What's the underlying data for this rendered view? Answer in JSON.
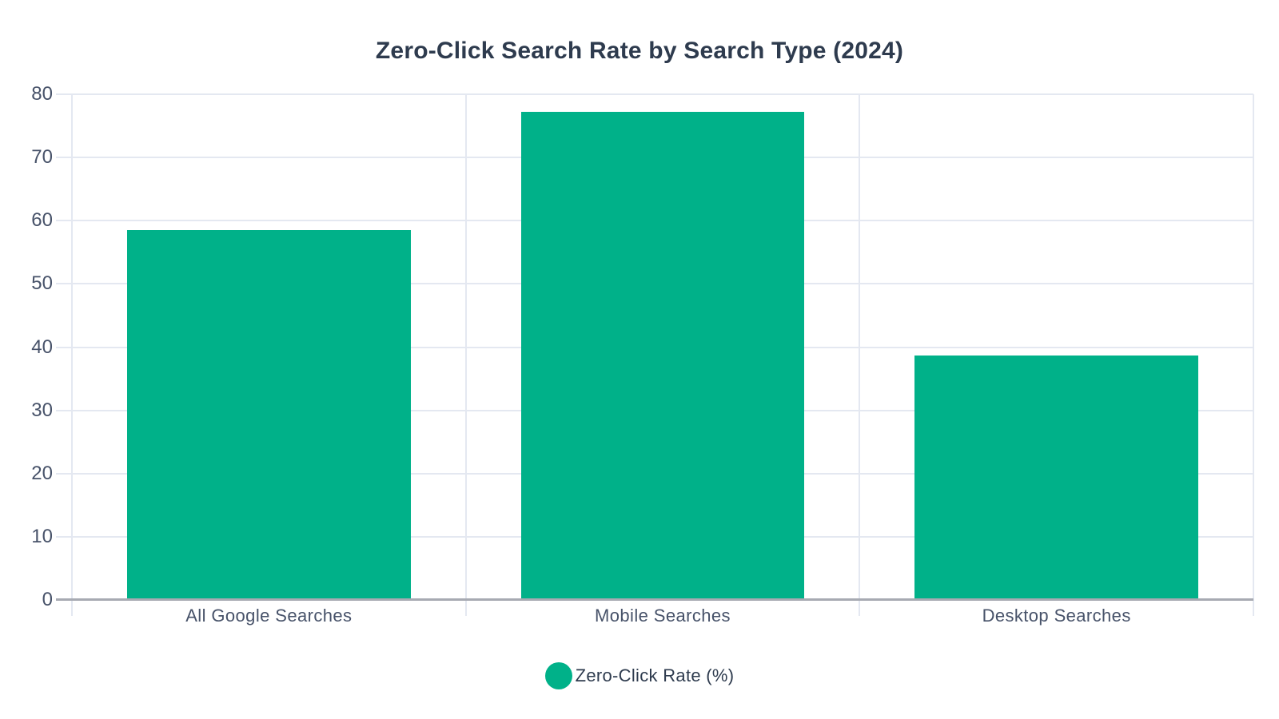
{
  "chart_data": {
    "type": "bar",
    "title": "Zero-Click Search Rate by Search Type (2024)",
    "categories": [
      "All Google Searches",
      "Mobile Searches",
      "Desktop Searches"
    ],
    "series": [
      {
        "name": "Zero-Click Rate (%)",
        "values": [
          58.5,
          77.2,
          38.7
        ]
      }
    ],
    "xlabel": "",
    "ylabel": "",
    "ylim": [
      0,
      80
    ],
    "yticks": [
      0,
      10,
      20,
      30,
      40,
      50,
      60,
      70,
      80
    ],
    "grid": true,
    "legend_position": "bottom",
    "bar_width_fraction": 0.72
  },
  "colors": {
    "bar": "#00b189",
    "title_text": "#2e3b4e",
    "tick_text": "#475269",
    "gridline": "#e4e8f1",
    "axis_line": "#a7aab2",
    "background": "#ffffff"
  },
  "legend": {
    "label": "Zero-Click Rate (%)"
  }
}
